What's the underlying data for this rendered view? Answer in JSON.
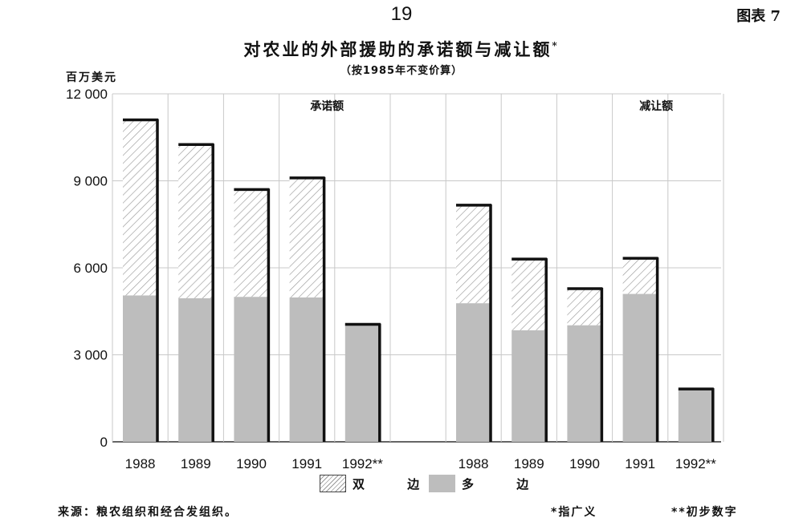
{
  "page_number": "19",
  "figure_label": "图表  7",
  "chart_data": {
    "type": "bar",
    "title": "对农业的外部援助的承诺额与减让额",
    "title_mark": "*",
    "subtitle": "（按1985年不变价算）",
    "ylabel": "百万美元",
    "ylim": [
      0,
      12000
    ],
    "yticks": [
      0,
      3000,
      6000,
      9000,
      12000
    ],
    "ytick_labels": [
      "0",
      "3 000",
      "6 000",
      "9 000",
      "12 000"
    ],
    "stacked": true,
    "grid": true,
    "legend_position": "bottom",
    "panels": [
      {
        "label": "承诺额",
        "categories": [
          "1988",
          "1989",
          "1990",
          "1991",
          "1992**"
        ],
        "series": [
          {
            "name": "多 边",
            "values": [
              5050,
              4950,
              5000,
              4980,
              4050
            ]
          },
          {
            "name": "双 边",
            "values": [
              6050,
              5300,
              3700,
              4120,
              0
            ]
          }
        ],
        "totals": [
          11100,
          10250,
          8700,
          9100,
          4050
        ]
      },
      {
        "label": "减让额",
        "categories": [
          "1988",
          "1989",
          "1990",
          "1991",
          "1992**"
        ],
        "series": [
          {
            "name": "多 边",
            "values": [
              4780,
              3850,
              4020,
              5100,
              1820
            ]
          },
          {
            "name": "双 边",
            "values": [
              3380,
              2450,
              1260,
              1230,
              0
            ]
          }
        ],
        "totals": [
          8160,
          6300,
          5280,
          6330,
          1820
        ]
      }
    ],
    "legend": [
      {
        "name": "双 边",
        "pattern": "hatched"
      },
      {
        "name": "多 边",
        "pattern": "solid",
        "color": "#bdbdbd"
      }
    ]
  },
  "colors": {
    "multilateral": "#bdbdbd",
    "bilateral_hatch": "#9a9a9a",
    "bar_shadow": "#111111",
    "grid": "#c8c8c8"
  },
  "notes": {
    "source": "来源：粮农组织和经合发组织。",
    "footnote_1": "*指广义",
    "footnote_2": "**初步数字"
  }
}
